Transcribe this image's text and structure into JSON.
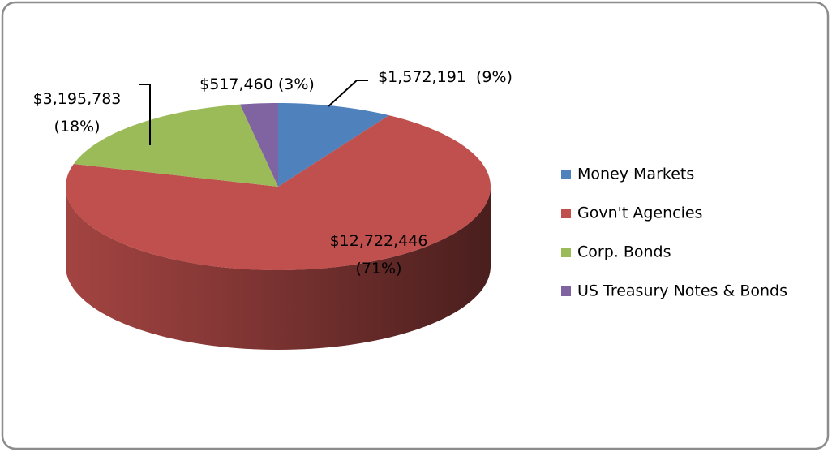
{
  "chart_data": {
    "type": "pie3d",
    "categories": [
      "Money Markets",
      "Govn't Agencies",
      "Corp. Bonds",
      "US Treasury Notes & Bonds"
    ],
    "values": [
      1572191,
      12722446,
      3195783,
      517460
    ],
    "value_labels": [
      "$1,572,191  (9%)",
      "$12,722,446\n(71%)",
      "$3,195,783\n(18%)",
      "$517,460 (3%)"
    ],
    "colors": [
      "#4f81bd",
      "#c0504d",
      "#9bbb59",
      "#8064a2"
    ],
    "legend": "right"
  }
}
